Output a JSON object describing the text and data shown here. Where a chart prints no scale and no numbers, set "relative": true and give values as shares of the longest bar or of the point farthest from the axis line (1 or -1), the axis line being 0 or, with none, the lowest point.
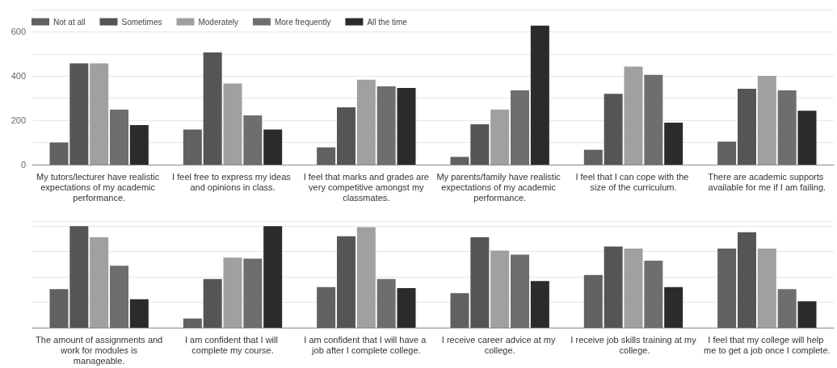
{
  "chart_data": [
    {
      "type": "bar",
      "categories": [
        "My tutors/lecturer have realistic expectations of my academic performance.",
        "I feel free to express my ideas and opinions in class.",
        "I feel that marks and grades are very competitive amongst my classmates.",
        "My parents/family have realistic expectations of my academic performance.",
        "I feel that I can cope with the size of the curriculum.",
        "There are academic supports available for me if I am failing."
      ],
      "series": [
        {
          "name": "Not at all",
          "color": "#616161",
          "values": [
            100,
            159,
            78,
            35,
            67,
            104
          ]
        },
        {
          "name": "Sometimes",
          "color": "#555555",
          "values": [
            458,
            507,
            259,
            182,
            320,
            343
          ]
        },
        {
          "name": "Moderately",
          "color": "#a0a0a0",
          "values": [
            458,
            366,
            384,
            249,
            443,
            401
          ]
        },
        {
          "name": "More frequently",
          "color": "#6e6e6e",
          "values": [
            249,
            222,
            354,
            335,
            406,
            335
          ]
        },
        {
          "name": "All the time",
          "color": "#2b2b2b",
          "values": [
            179,
            159,
            346,
            628,
            190,
            243
          ]
        }
      ],
      "ylim": [
        0,
        700
      ],
      "yticks": [
        0,
        {
          "value": 100,
          "label": null
        },
        200,
        {
          "value": 300,
          "label": null
        },
        400,
        {
          "value": 500,
          "label": null
        },
        600,
        {
          "value": 700,
          "label": null
        }
      ],
      "grid": "y",
      "legend": "top left"
    },
    {
      "type": "bar",
      "relative": true,
      "categories": [
        "The amount of assignments and work for modules is manageable.",
        "I am confident that I will complete my course.",
        "I am confident that I will have a job after I complete college.",
        "I receive career advice at my college.",
        "I receive job skills training at my college.",
        "I feel that my college will help me to get a job once I complete."
      ],
      "series": [
        {
          "color": "#616161",
          "values": [
            0.38,
            0.09,
            0.4,
            0.34,
            0.52,
            0.78
          ]
        },
        {
          "color": "#555555",
          "values": [
            1.0,
            0.48,
            0.9,
            0.89,
            0.8,
            0.94
          ]
        },
        {
          "color": "#a0a0a0",
          "values": [
            0.89,
            0.69,
            0.99,
            0.76,
            0.78,
            0.78
          ]
        },
        {
          "color": "#6e6e6e",
          "values": [
            0.61,
            0.68,
            0.48,
            0.72,
            0.66,
            0.38
          ]
        },
        {
          "color": "#2b2b2b",
          "values": [
            0.28,
            1.0,
            0.39,
            0.46,
            0.4,
            0.26
          ]
        }
      ],
      "grid": "y"
    }
  ]
}
